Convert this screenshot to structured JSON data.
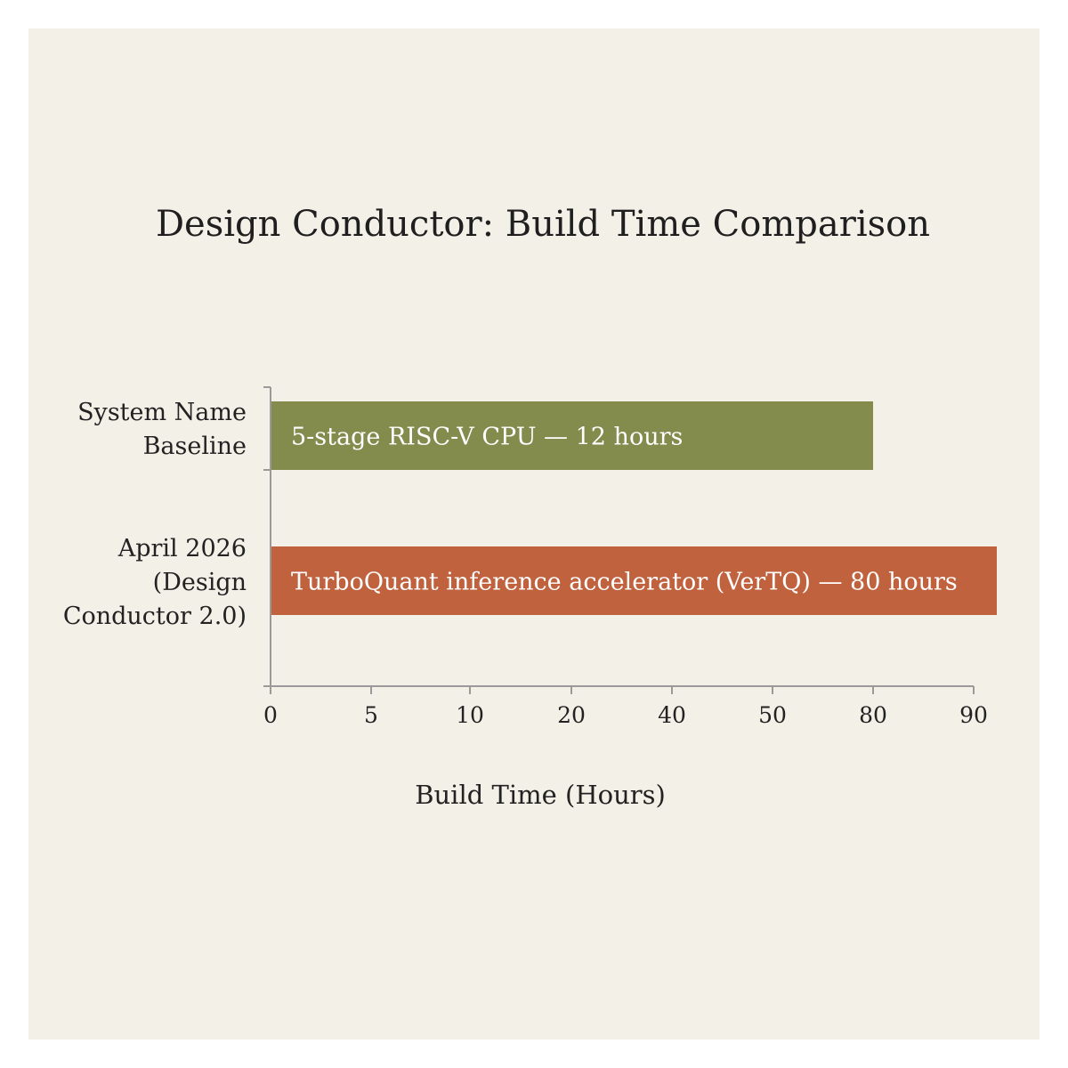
{
  "chart_data": {
    "type": "bar",
    "orientation": "horizontal",
    "title": "Design Conductor: Build Time Comparison",
    "xlabel": "Build Time (Hours)",
    "ylabel": "",
    "x_ticks": [
      "0",
      "5",
      "10",
      "20",
      "40",
      "50",
      "80",
      "90"
    ],
    "categories": [
      [
        "System Name",
        "Baseline"
      ],
      [
        "April 2026",
        "(Design",
        "Conductor 2.0)"
      ]
    ],
    "bars": [
      {
        "label": "5-stage RISC-V CPU — 12 hours",
        "value": 12,
        "color": "#838c4d"
      },
      {
        "label": "TurboQuant inference accelerator (VerTQ) — 80 hours",
        "value": 80,
        "color": "#c1623f"
      }
    ],
    "grid": false,
    "legend": "none"
  }
}
